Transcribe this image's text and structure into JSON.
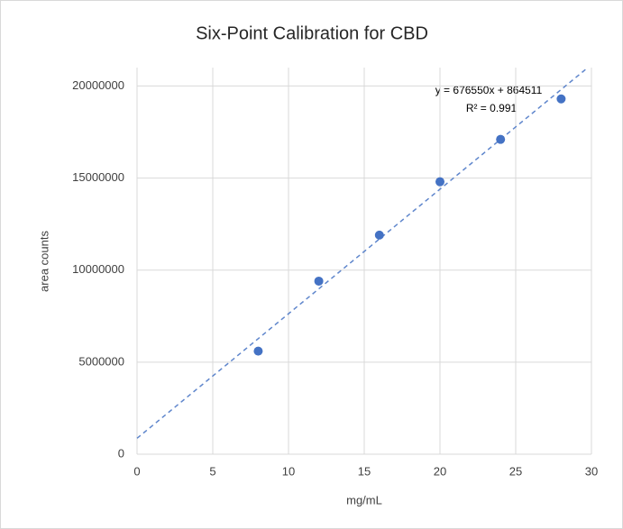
{
  "chart_data": {
    "type": "scatter",
    "title": "Six-Point Calibration for CBD",
    "x_label": "mg/mL",
    "y_label": "area counts",
    "series": [
      {
        "name": "CBD",
        "color": "#4472c4",
        "x": [
          8,
          12,
          16,
          20,
          24,
          28
        ],
        "values": [
          5600000,
          9400000,
          11900000,
          14800000,
          17100000,
          19300000
        ]
      }
    ],
    "trendline": {
      "slope": 676550,
      "intercept": 864511,
      "equation": "y = 676550x + 864511",
      "r_squared": "R² = 0.991"
    },
    "xlim": [
      0,
      30
    ],
    "xticks": [
      0,
      5,
      10,
      15,
      20,
      25,
      30
    ],
    "ylim": [
      0,
      21000000
    ],
    "yticks": [
      0,
      5000000,
      10000000,
      15000000,
      20000000
    ],
    "grid": true
  }
}
